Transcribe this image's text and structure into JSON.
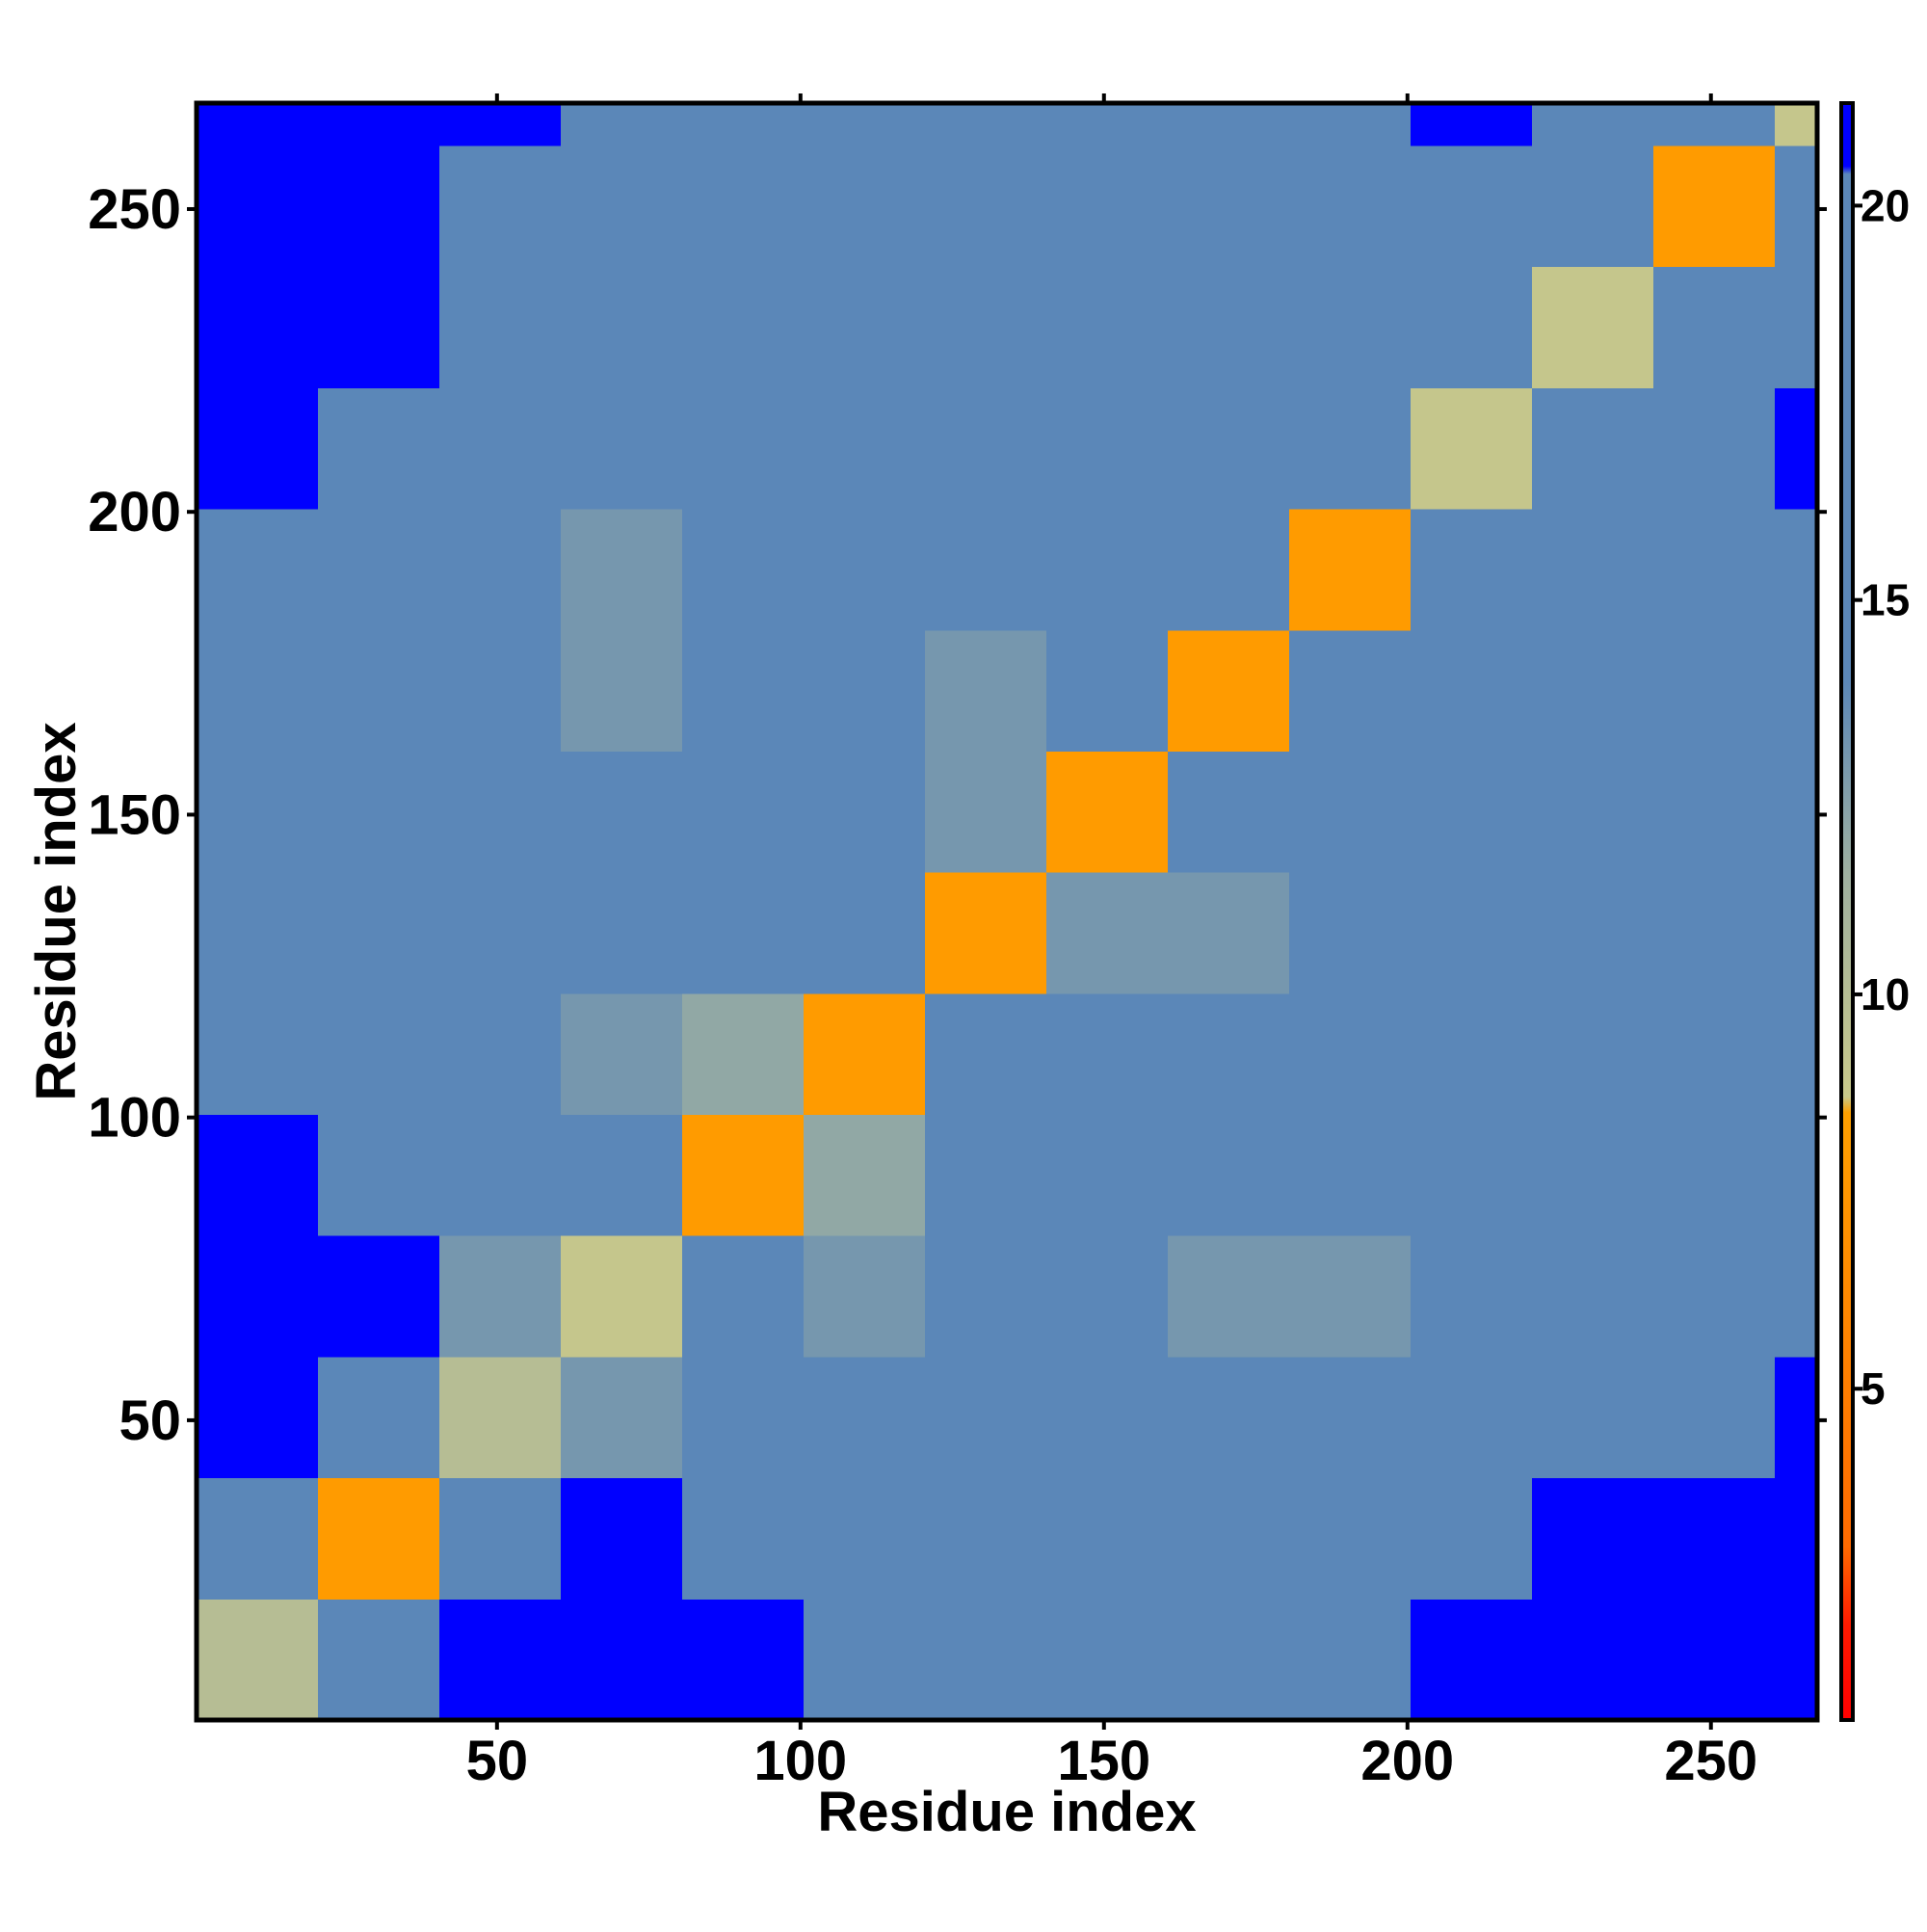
{
  "chart_data": {
    "type": "heatmap",
    "x_label": "Residue index",
    "y_label": "Residue index",
    "x_bins": [
      0.5,
      20.5,
      40.5,
      60.5,
      80.5,
      100.5,
      120.5,
      140.5,
      160.5,
      180.5,
      200.5,
      220.5,
      240.5,
      260.5,
      267.5
    ],
    "y_bins": [
      0.5,
      20.5,
      40.5,
      60.5,
      80.5,
      100.5,
      120.5,
      140.5,
      160.5,
      180.5,
      200.5,
      220.5,
      240.5,
      260.5,
      267.5
    ],
    "values": [
      [
        10,
        20,
        21,
        21,
        21,
        19,
        19,
        17,
        19,
        19,
        21,
        21,
        21,
        21
      ],
      [
        20,
        8,
        19,
        21,
        20,
        19,
        19,
        18,
        19,
        19,
        20,
        21,
        21,
        21
      ],
      [
        21,
        19,
        10,
        13,
        16,
        15,
        15,
        17,
        15,
        18,
        19,
        20,
        20,
        21
      ],
      [
        21,
        21,
        13,
        9,
        14,
        13,
        15,
        17,
        13,
        13,
        18,
        19,
        19,
        20
      ],
      [
        21,
        20,
        16,
        14,
        8,
        12,
        15,
        17,
        17,
        15,
        19,
        17,
        17,
        19
      ],
      [
        19,
        19,
        15,
        13,
        12,
        8,
        14,
        16,
        17,
        16,
        18,
        18,
        17,
        20
      ],
      [
        19,
        19,
        15,
        15,
        15,
        14,
        8,
        13,
        13,
        16,
        14,
        18,
        17,
        20
      ],
      [
        17,
        18,
        17,
        17,
        17,
        16,
        13,
        8,
        14,
        17,
        18,
        14,
        14,
        19
      ],
      [
        19,
        19,
        15,
        13,
        17,
        17,
        13,
        14,
        8,
        15,
        17,
        16,
        15,
        19
      ],
      [
        19,
        19,
        18,
        13,
        15,
        16,
        16,
        17,
        15,
        8,
        17,
        14,
        18,
        20
      ],
      [
        21,
        20,
        19,
        18,
        19,
        18,
        14,
        18,
        17,
        17,
        9,
        19,
        20,
        21
      ],
      [
        21,
        21,
        20,
        19,
        17,
        18,
        18,
        14,
        16,
        14,
        19,
        9,
        17,
        20
      ],
      [
        21,
        21,
        20,
        19,
        17,
        17,
        17,
        14,
        15,
        18,
        20,
        17,
        8,
        15
      ],
      [
        21,
        21,
        21,
        20,
        19,
        20,
        20,
        19,
        19,
        20,
        21,
        20,
        15,
        9
      ]
    ],
    "xlim": [
      0.5,
      267.5
    ],
    "ylim": [
      0.5,
      267.5
    ],
    "xticks": [
      50,
      100,
      150,
      200,
      250
    ],
    "yticks": [
      50,
      100,
      150,
      200,
      250
    ],
    "clim": [
      0.8,
      21.3
    ],
    "cticks": [
      5,
      10,
      15,
      20
    ],
    "colorscale": [
      {
        "value": 0.8,
        "color": "#ff0000"
      },
      {
        "value": 2,
        "color": "#ff1a00"
      },
      {
        "value": 3,
        "color": "#ff6a00"
      },
      {
        "value": 8.5,
        "color": "#ffa000"
      },
      {
        "value": 8.7,
        "color": "#c9c98a"
      },
      {
        "value": 11.5,
        "color": "#9fb0a0"
      },
      {
        "value": 14,
        "color": "#5b87b8"
      },
      {
        "value": 20.4,
        "color": "#5b87b8"
      },
      {
        "value": 20.5,
        "color": "#0000ff"
      },
      {
        "value": 21.3,
        "color": "#0000ff"
      }
    ]
  }
}
